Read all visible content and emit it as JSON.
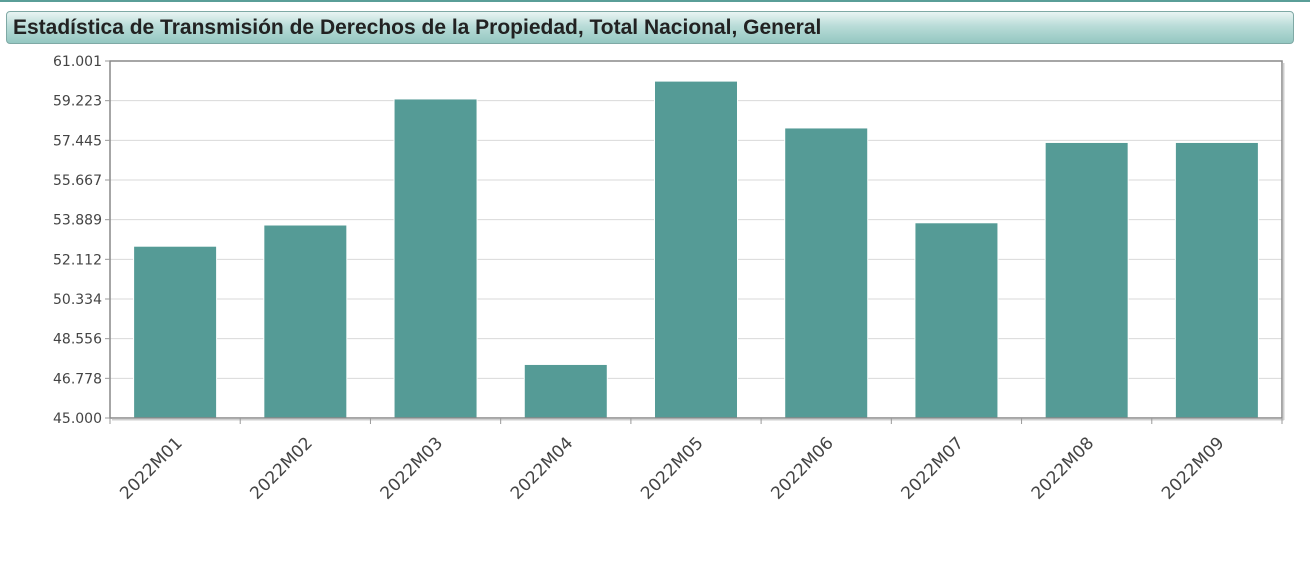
{
  "header": {
    "title": "Estadística de Transmisión de Derechos de la Propiedad, Total Nacional, General"
  },
  "chart_data": {
    "type": "bar",
    "title": "Estadística de Transmisión de Derechos de la Propiedad, Total Nacional, General",
    "categories": [
      "2022M01",
      "2022M02",
      "2022M03",
      "2022M04",
      "2022M05",
      "2022M06",
      "2022M07",
      "2022M08",
      "2022M09"
    ],
    "values": [
      52.7,
      53.65,
      59.3,
      47.4,
      60.1,
      58.0,
      53.75,
      57.35,
      57.35
    ],
    "yticks": [
      "45.000",
      "46.778",
      "48.556",
      "50.334",
      "52.112",
      "53.889",
      "55.667",
      "57.445",
      "59.223",
      "61.001"
    ],
    "ylim": [
      45.0,
      61.001
    ],
    "xlabel": "",
    "ylabel": "",
    "grid": true,
    "bar_color": "#559b96"
  }
}
